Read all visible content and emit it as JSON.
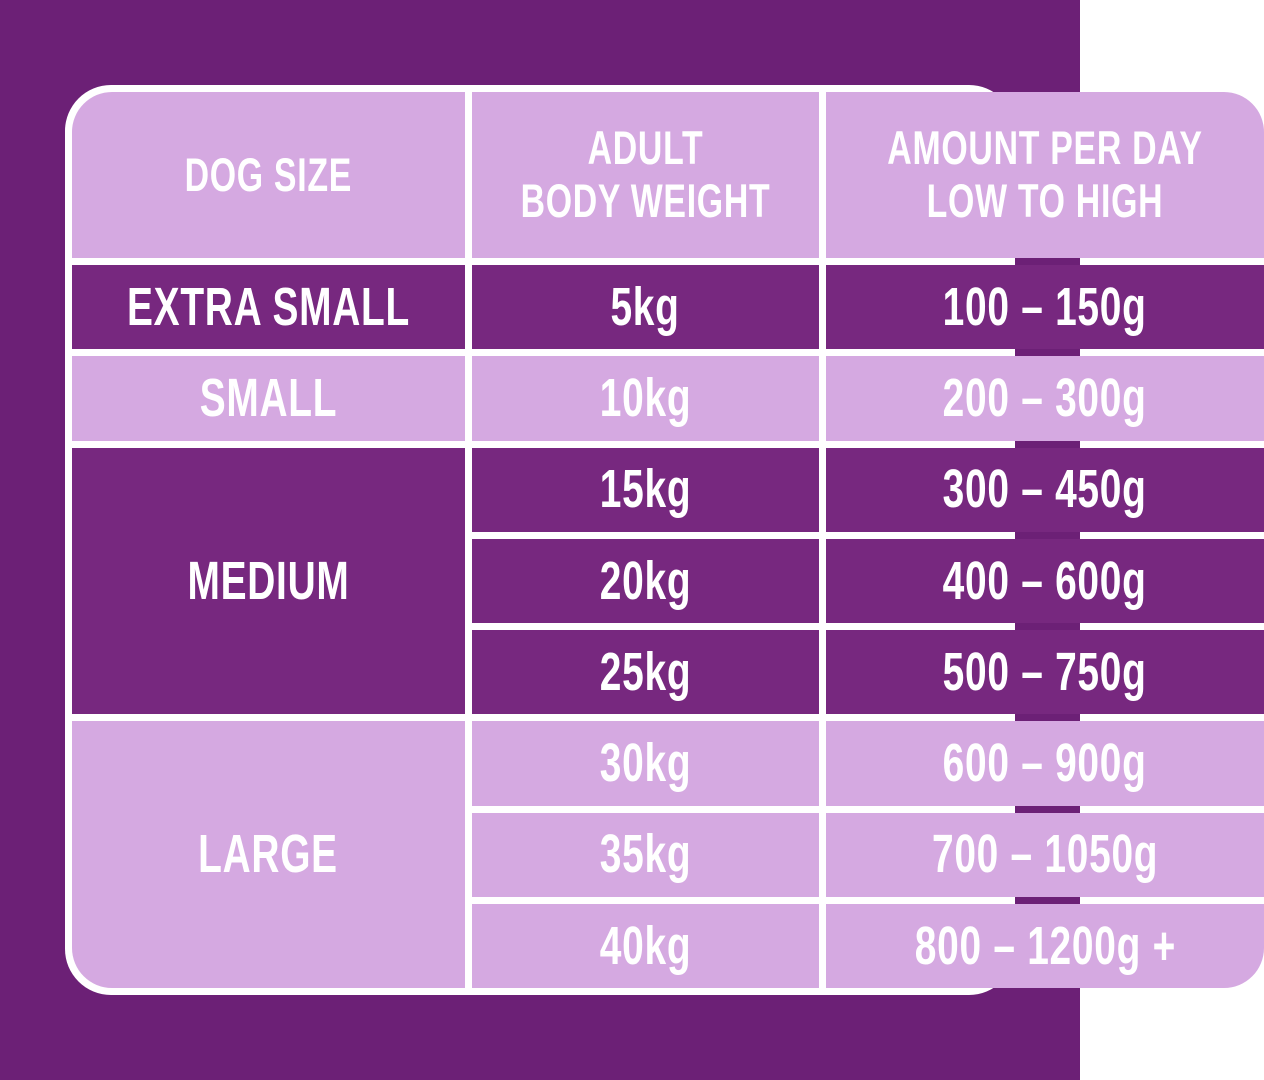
{
  "page": {
    "background_color": "#6C2076"
  },
  "colors": {
    "dark_cell": "#77287F",
    "light_cell": "#D5A9E1",
    "grid_line": "#FFFFFF",
    "text": "#FFFFFF"
  },
  "table": {
    "columns": [
      {
        "header": "DOG SIZE"
      },
      {
        "header": "ADULT\nBODY WEIGHT"
      },
      {
        "header": "AMOUNT PER DAY\nLOW TO HIGH"
      }
    ],
    "groups": [
      {
        "size": "EXTRA SMALL",
        "shade": "dark",
        "rows": [
          {
            "weight": "5kg",
            "amount": "100 – 150g"
          }
        ]
      },
      {
        "size": "SMALL",
        "shade": "light",
        "rows": [
          {
            "weight": "10kg",
            "amount": "200 – 300g"
          }
        ]
      },
      {
        "size": "MEDIUM",
        "shade": "dark",
        "rows": [
          {
            "weight": "15kg",
            "amount": "300 – 450g"
          },
          {
            "weight": "20kg",
            "amount": "400 – 600g"
          },
          {
            "weight": "25kg",
            "amount": "500 – 750g"
          }
        ]
      },
      {
        "size": "LARGE",
        "shade": "light",
        "rows": [
          {
            "weight": "30kg",
            "amount": "600 – 900g"
          },
          {
            "weight": "35kg",
            "amount": "700 – 1050g"
          },
          {
            "weight": "40kg",
            "amount": "800 – 1200g +"
          }
        ]
      }
    ]
  }
}
